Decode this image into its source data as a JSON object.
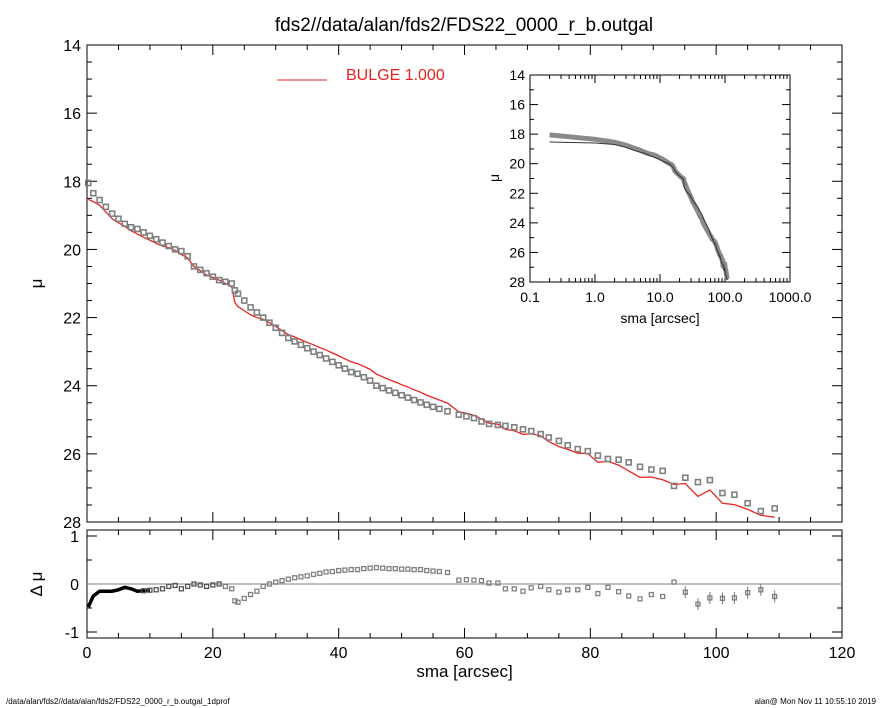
{
  "title": "fds2//data/alan/fds2/FDS22_0000_r_b.outgal",
  "footer": {
    "left": "/data/alan/fds2//data/alan/fds2/FDS22_0000_r_b.outgal_1dprof",
    "right": "alan@  Mon Nov 11 10:55:10 2019"
  },
  "colors": {
    "model": "#e8231e",
    "observed": "#808080",
    "axes": "#000000",
    "zero_line": "#9a9a9a"
  },
  "chart_data": [
    {
      "id": "main-profile",
      "type": "scatter",
      "xlabel": "",
      "ylabel": "μ",
      "xlim": [
        0,
        120
      ],
      "ylim": [
        28,
        14
      ],
      "y_reversed": true,
      "xticks": [
        0,
        20,
        40,
        60,
        80,
        100,
        120
      ],
      "yticks": [
        14,
        16,
        18,
        20,
        22,
        24,
        26,
        28
      ],
      "ytick_labels": [
        "14",
        "16",
        "18",
        "20",
        "22",
        "24",
        "26",
        "28"
      ],
      "legend": {
        "label": "BULGE  1.000",
        "placement": "top-center",
        "color": "#e8231e"
      },
      "grid": false
    },
    {
      "id": "residuals",
      "type": "scatter",
      "xlabel": "sma [arcsec]",
      "ylabel": "Δ μ",
      "xlim": [
        0,
        120
      ],
      "ylim": [
        -1.125,
        1.125
      ],
      "xticks": [
        0,
        20,
        40,
        60,
        80,
        100,
        120
      ],
      "xtick_labels": [
        "0",
        "20",
        "40",
        "60",
        "80",
        "100",
        "120"
      ],
      "yticks": [
        1,
        0,
        -1
      ],
      "ytick_labels": [
        "1",
        "0",
        "-1"
      ],
      "zero_line": true,
      "grid": false
    },
    {
      "id": "inset-log-profile",
      "type": "line",
      "xlabel": "sma [arcsec]",
      "ylabel": "μ",
      "xscale": "log",
      "xlim": [
        0.1,
        1000
      ],
      "ylim": [
        28,
        14
      ],
      "y_reversed": true,
      "xticks": [
        0.1,
        1,
        10,
        100,
        1000
      ],
      "xtick_labels": [
        "0.1",
        "1.0",
        "10.0",
        "100.0",
        "1000.0"
      ],
      "yticks": [
        14,
        16,
        18,
        20,
        22,
        24,
        26,
        28
      ],
      "ytick_labels": [
        "14",
        "16",
        "18",
        "20",
        "22",
        "24",
        "26",
        "28"
      ],
      "grid": false
    }
  ],
  "profile": {
    "sma": [
      0.2,
      1,
      2,
      3,
      4,
      5,
      6,
      7,
      8,
      9,
      10,
      11,
      12,
      13,
      14,
      15,
      16,
      17,
      18,
      19,
      20,
      21,
      22,
      23,
      23.5,
      24,
      25,
      26,
      27,
      28,
      29,
      30,
      31,
      32,
      33,
      34,
      35,
      36,
      37,
      38,
      39,
      40,
      41,
      42,
      43,
      44,
      45,
      46,
      47,
      48,
      49,
      50,
      51,
      52,
      53,
      54,
      55,
      56,
      57.3,
      59.1,
      60.3,
      61.5,
      62.7,
      63.9,
      65.3,
      66.5,
      67.9,
      69.3,
      70.6,
      72.1,
      73.4,
      75,
      76.4,
      78,
      79.6,
      81.2,
      82.8,
      84.5,
      86.1,
      87.9,
      89.7,
      91.5,
      93.3,
      95.1,
      97.1,
      99,
      101,
      102.9,
      105,
      107.1,
      109.3
    ],
    "mu_observed": [
      18.05,
      18.35,
      18.55,
      18.75,
      18.95,
      19.1,
      19.25,
      19.35,
      19.4,
      19.5,
      19.6,
      19.7,
      19.8,
      19.9,
      20.0,
      20.05,
      20.2,
      20.5,
      20.6,
      20.7,
      20.8,
      20.9,
      20.95,
      21.0,
      21.2,
      21.3,
      21.5,
      21.7,
      21.85,
      22.0,
      22.15,
      22.3,
      22.45,
      22.6,
      22.7,
      22.8,
      22.9,
      23.0,
      23.1,
      23.2,
      23.3,
      23.4,
      23.5,
      23.6,
      23.65,
      23.75,
      23.85,
      24.0,
      24.07,
      24.14,
      24.21,
      24.28,
      24.35,
      24.42,
      24.49,
      24.56,
      24.62,
      24.68,
      24.75,
      24.85,
      24.9,
      24.95,
      25.05,
      25.12,
      25.15,
      25.18,
      25.22,
      25.28,
      25.33,
      25.42,
      25.52,
      25.62,
      25.75,
      25.86,
      25.92,
      26.05,
      26.15,
      26.17,
      26.25,
      26.38,
      26.46,
      26.5,
      26.94,
      26.7,
      26.83,
      26.77,
      27.15,
      27.2,
      27.45,
      27.68,
      27.6
    ],
    "mu_model_bulge": [
      18.53,
      18.6,
      18.7,
      18.9,
      19.1,
      19.22,
      19.32,
      19.45,
      19.55,
      19.64,
      19.73,
      19.82,
      19.9,
      19.95,
      20.03,
      20.15,
      20.25,
      20.5,
      20.62,
      20.75,
      20.82,
      20.9,
      21.0,
      21.1,
      21.55,
      21.68,
      21.8,
      21.92,
      22.0,
      22.05,
      22.15,
      22.26,
      22.38,
      22.5,
      22.57,
      22.65,
      22.73,
      22.8,
      22.88,
      22.95,
      23.04,
      23.12,
      23.21,
      23.3,
      23.35,
      23.43,
      23.52,
      23.66,
      23.74,
      23.82,
      23.89,
      23.97,
      24.04,
      24.12,
      24.19,
      24.28,
      24.35,
      24.42,
      24.51,
      24.77,
      24.81,
      24.87,
      24.98,
      25.1,
      25.13,
      25.28,
      25.32,
      25.43,
      25.41,
      25.47,
      25.64,
      25.79,
      25.87,
      25.98,
      25.99,
      26.25,
      26.22,
      26.33,
      26.5,
      26.69,
      26.68,
      26.76,
      26.9,
      26.87,
      27.25,
      27.06,
      27.45,
      27.49,
      27.63,
      27.8,
      27.86
    ],
    "delta_mu": [
      -0.48,
      -0.25,
      -0.15,
      -0.15,
      -0.15,
      -0.12,
      -0.07,
      -0.1,
      -0.15,
      -0.14,
      -0.13,
      -0.12,
      -0.1,
      -0.05,
      -0.03,
      -0.1,
      -0.05,
      0.0,
      -0.02,
      -0.05,
      -0.02,
      0.0,
      -0.05,
      -0.1,
      -0.35,
      -0.38,
      -0.3,
      -0.22,
      -0.15,
      -0.05,
      0.0,
      0.04,
      0.07,
      0.1,
      0.13,
      0.15,
      0.17,
      0.2,
      0.22,
      0.25,
      0.26,
      0.28,
      0.29,
      0.3,
      0.3,
      0.32,
      0.33,
      0.34,
      0.33,
      0.32,
      0.32,
      0.31,
      0.31,
      0.3,
      0.3,
      0.28,
      0.27,
      0.26,
      0.24,
      0.08,
      0.09,
      0.08,
      0.07,
      0.02,
      0.02,
      -0.1,
      -0.1,
      -0.15,
      -0.08,
      -0.05,
      -0.12,
      -0.17,
      -0.12,
      -0.12,
      -0.07,
      -0.2,
      -0.07,
      -0.16,
      -0.25,
      -0.31,
      -0.22,
      -0.26,
      0.04,
      -0.17,
      -0.42,
      -0.29,
      -0.3,
      -0.29,
      -0.18,
      -0.12,
      -0.26
    ]
  }
}
